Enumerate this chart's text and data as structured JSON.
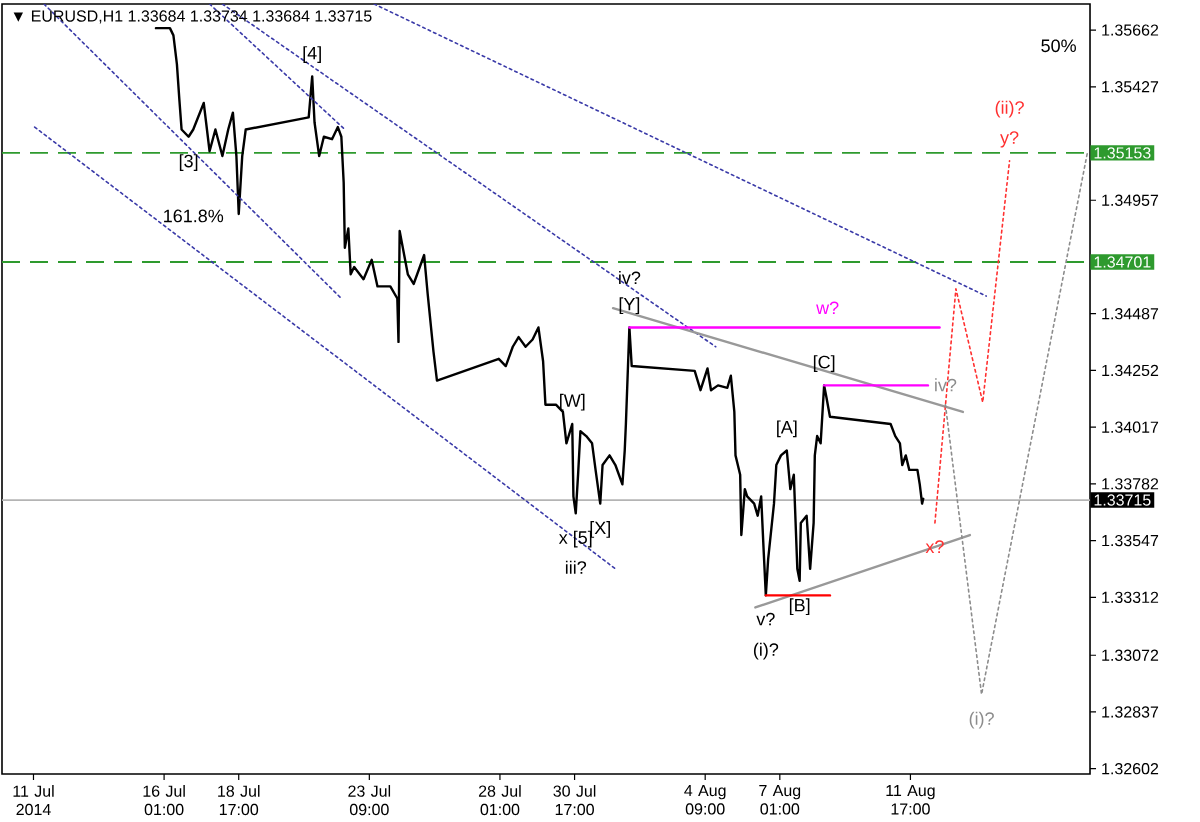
{
  "chart_data": {
    "type": "line",
    "title": "▼ EURUSD,H1 1.33684 1.33734 1.33684 1.33715",
    "xlim": [
      "2014-07-10T06:00",
      "2014-08-18T03:00"
    ],
    "ylim": [
      1.3258,
      1.3577
    ],
    "xticks": [
      {
        "value": "2014-07-11T09:00",
        "label": "11 Jul 2014"
      },
      {
        "value": "2014-07-16T01:00",
        "label": "16 Jul 01:00"
      },
      {
        "value": "2014-07-18T17:00",
        "label": "18 Jul 17:00"
      },
      {
        "value": "2014-07-23T09:00",
        "label": "23 Jul 09:00"
      },
      {
        "value": "2014-07-28T01:00",
        "label": "28 Jul 01:00"
      },
      {
        "value": "2014-07-30T17:00",
        "label": "30 Jul 17:00"
      },
      {
        "value": "2014-08-04T09:00",
        "label": "4 Aug 09:00"
      },
      {
        "value": "2014-08-07T01:00",
        "label": "7 Aug 01:00"
      },
      {
        "value": "2014-08-11T17:00",
        "label": "11 Aug 17:00"
      }
    ],
    "yticks": [
      1.35662,
      1.35427,
      1.34957,
      1.34487,
      1.34252,
      1.34017,
      1.33782,
      1.33547,
      1.33312,
      1.33072,
      1.32837,
      1.32602
    ],
    "series": [
      {
        "color": "#000000",
        "line_style": "solid",
        "x": [
          "2014-07-15T18:00",
          "2014-07-16T06:00",
          "2014-07-16T09:00",
          "2014-07-16T12:00",
          "2014-07-16T14:00",
          "2014-07-16T16:00",
          "2014-07-16T22:00",
          "2014-07-17T02:00",
          "2014-07-17T11:00",
          "2014-07-17T13:00",
          "2014-07-17T16:00",
          "2014-07-17T21:00",
          "2014-07-18T03:00",
          "2014-07-18T08:00",
          "2014-07-18T12:00",
          "2014-07-18T15:00",
          "2014-07-18T17:00",
          "2014-07-18T20:00",
          "2014-07-18T23:00",
          "2014-07-21T05:00",
          "2014-07-21T08:00",
          "2014-07-21T10:00",
          "2014-07-21T14:00",
          "2014-07-21T18:00",
          "2014-07-22T01:00",
          "2014-07-22T06:00",
          "2014-07-22T09:00",
          "2014-07-22T11:00",
          "2014-07-22T12:00",
          "2014-07-22T15:00",
          "2014-07-22T17:00",
          "2014-07-22T20:00",
          "2014-07-23T04:00",
          "2014-07-23T11:00",
          "2014-07-23T16:00",
          "2014-07-24T03:00",
          "2014-07-24T09:00",
          "2014-07-24T10:00",
          "2014-07-24T11:00",
          "2014-07-24T18:00",
          "2014-07-24T23:00",
          "2014-07-25T08:00",
          "2014-07-25T11:00",
          "2014-07-25T16:00",
          "2014-07-25T19:00",
          "2014-07-28T00:00",
          "2014-07-28T06:00",
          "2014-07-28T12:00",
          "2014-07-28T17:00",
          "2014-07-28T23:00",
          "2014-07-29T05:00",
          "2014-07-29T10:00",
          "2014-07-29T14:00",
          "2014-07-29T16:00",
          "2014-07-30T01:00",
          "2014-07-30T07:00",
          "2014-07-30T10:00",
          "2014-07-30T15:00",
          "2014-07-30T16:00",
          "2014-07-30T18:00",
          "2014-07-30T20:00",
          "2014-07-30T22:00",
          "2014-07-31T03:00",
          "2014-07-31T08:00",
          "2014-07-31T11:00",
          "2014-07-31T15:00",
          "2014-07-31T17:00",
          "2014-07-31T23:00",
          "2014-08-01T04:00",
          "2014-08-01T10:00",
          "2014-08-01T12:00",
          "2014-08-01T13:00",
          "2014-08-01T16:00",
          "2014-08-01T18:00",
          "2014-08-04T00:00",
          "2014-08-04T05:00",
          "2014-08-04T11:00",
          "2014-08-04T14:00",
          "2014-08-04T20:00",
          "2014-08-05T04:00",
          "2014-08-05T07:00",
          "2014-08-05T10:00",
          "2014-08-05T11:00",
          "2014-08-05T15:00",
          "2014-08-05T16:00",
          "2014-08-05T19:00",
          "2014-08-05T21:00",
          "2014-08-06T03:00",
          "2014-08-06T06:00",
          "2014-08-06T09:00",
          "2014-08-06T11:00",
          "2014-08-06T13:00",
          "2014-08-06T15:00",
          "2014-08-06T20:00",
          "2014-08-06T22:00",
          "2014-08-07T02:00",
          "2014-08-07T07:00",
          "2014-08-07T10:00",
          "2014-08-07T13:00",
          "2014-08-07T16:00",
          "2014-08-07T18:00",
          "2014-08-07T19:00",
          "2014-08-08T00:00",
          "2014-08-08T03:00",
          "2014-08-08T06:00",
          "2014-08-08T07:00",
          "2014-08-08T09:00",
          "2014-08-08T12:00",
          "2014-08-08T15:00",
          "2014-08-08T17:00",
          "2014-08-08T20:00",
          "2014-08-11T00:00",
          "2014-08-11T04:00",
          "2014-08-11T08:00",
          "2014-08-11T10:00",
          "2014-08-11T13:00",
          "2014-08-11T16:00",
          "2014-08-11T23:00",
          "2014-08-12T01:00",
          "2014-08-12T03:00",
          "2014-08-12T04:00"
        ],
        "values": [
          1.3567,
          1.3567,
          1.3564,
          1.3552,
          1.3538,
          1.3525,
          1.3522,
          1.3525,
          1.3536,
          1.3528,
          1.3516,
          1.3525,
          1.3514,
          1.3525,
          1.3532,
          1.3514,
          1.349,
          1.3514,
          1.3525,
          1.353,
          1.3547,
          1.3528,
          1.3514,
          1.3522,
          1.3521,
          1.3526,
          1.3522,
          1.3503,
          1.3476,
          1.3484,
          1.3465,
          1.3468,
          1.3463,
          1.3471,
          1.346,
          1.346,
          1.3455,
          1.3437,
          1.3483,
          1.3465,
          1.3461,
          1.3473,
          1.3457,
          1.3433,
          1.3421,
          1.343,
          1.3427,
          1.3435,
          1.3439,
          1.3435,
          1.3438,
          1.3443,
          1.3429,
          1.3411,
          1.3411,
          1.3408,
          1.3395,
          1.3403,
          1.3373,
          1.3366,
          1.3382,
          1.34,
          1.3398,
          1.3395,
          1.3384,
          1.337,
          1.3386,
          1.339,
          1.3386,
          1.3378,
          1.3392,
          1.3403,
          1.3443,
          1.3427,
          1.3425,
          1.3417,
          1.3426,
          1.3417,
          1.3419,
          1.3418,
          1.3423,
          1.3408,
          1.339,
          1.3382,
          1.3357,
          1.3376,
          1.3373,
          1.337,
          1.3365,
          1.3373,
          1.3352,
          1.3332,
          1.3347,
          1.337,
          1.3386,
          1.339,
          1.3392,
          1.3376,
          1.3382,
          1.3343,
          1.3338,
          1.3362,
          1.3365,
          1.3343,
          1.3362,
          1.339,
          1.3398,
          1.3395,
          1.3419,
          1.3414,
          1.3406,
          1.3403,
          1.3398,
          1.3395,
          1.3386,
          1.339,
          1.3384,
          1.3384,
          1.3378,
          1.337,
          1.3372
        ]
      },
      {
        "color": "#3a3aa8",
        "line_style": "dotted",
        "x": [
          "2014-07-11T10:00",
          "2014-08-01T04:00"
        ],
        "values": [
          1.3526,
          1.3343
        ]
      },
      {
        "color": "#3a3aa8",
        "line_style": "dotted",
        "x": [
          "2014-07-11T18:00",
          "2014-07-22T09:00"
        ],
        "values": [
          1.3577,
          1.3455
        ]
      },
      {
        "color": "#3a3aa8",
        "line_style": "dotted",
        "x": [
          "2014-07-17T16:00",
          "2014-07-22T12:00"
        ],
        "values": [
          1.3577,
          1.3525
        ]
      },
      {
        "color": "#3a3aa8",
        "line_style": "dotted",
        "x": [
          "2014-07-18T03:00",
          "2014-08-04T18:00"
        ],
        "values": [
          1.3577,
          1.3435
        ]
      },
      {
        "color": "#3a3aa8",
        "line_style": "dotted",
        "x": [
          "2014-07-23T13:00",
          "2014-08-14T10:00"
        ],
        "values": [
          1.3577,
          1.3456
        ]
      },
      {
        "color": "#999999",
        "line_style": "solid",
        "x": [
          "2014-08-01T02:00",
          "2014-08-13T14:00"
        ],
        "values": [
          1.3451,
          1.3408
        ]
      },
      {
        "color": "#999999",
        "line_style": "solid",
        "x": [
          "2014-08-06T04:00",
          "2014-08-13T20:00"
        ],
        "values": [
          1.3327,
          1.3357
        ]
      },
      {
        "color": "#ff00ff",
        "line_style": "solid",
        "x": [
          "2014-08-01T16:00",
          "2014-08-12T18:00"
        ],
        "values": [
          1.3443,
          1.3443
        ]
      },
      {
        "color": "#ff00ff",
        "line_style": "solid",
        "x": [
          "2014-08-08T15:00",
          "2014-08-12T08:00"
        ],
        "values": [
          1.3419,
          1.3419
        ]
      },
      {
        "color": "#ff0000",
        "line_style": "solid",
        "x": [
          "2014-08-06T13:00",
          "2014-08-08T20:00"
        ],
        "values": [
          1.3332,
          1.3332
        ]
      },
      {
        "color": "#ff3030",
        "line_style": "dotted",
        "x": [
          "2014-08-12T14:00",
          "2014-08-13T08:00",
          "2014-08-14T07:00",
          "2014-08-15T06:00"
        ],
        "values": [
          1.3362,
          1.3459,
          1.3412,
          1.3512
        ]
      },
      {
        "color": "#8c8c8c",
        "line_style": "dotted",
        "x": [
          "2014-08-12T23:00",
          "2014-08-14T06:00",
          "2014-08-18T01:00"
        ],
        "values": [
          1.3411,
          1.3291,
          1.3516
        ]
      }
    ],
    "ref_lines": [
      {
        "axis": "y",
        "value": 1.35153,
        "label": "1.35153",
        "color": "#2e9a2e",
        "line_style": "dashed"
      },
      {
        "axis": "y",
        "value": 1.34701,
        "label": "1.34701",
        "color": "#2e9a2e",
        "line_style": "dashed"
      },
      {
        "axis": "y",
        "value": 1.33715,
        "label": "1.33715",
        "color": "#b4b4b4",
        "line_style": "solid"
      }
    ],
    "annotations": [
      {
        "text": "[3]",
        "x": "2014-07-16T22:00",
        "y": 1.3522
      },
      {
        "text": "[4]",
        "x": "2014-07-21T08:00",
        "y": 1.3547
      },
      {
        "text": "161.8%",
        "x": "2014-07-17T02:00",
        "y": 1.3481
      },
      {
        "text": "[Y]",
        "x": "2014-08-01T16:00",
        "y": 1.3443
      },
      {
        "text": "iv?",
        "x": "2014-08-01T16:00",
        "y": 1.3443
      },
      {
        "text": "[W]",
        "x": "2014-07-30T15:00",
        "y": 1.3403
      },
      {
        "text": "x [5]",
        "x": "2014-07-30T18:00",
        "y": 1.3366
      },
      {
        "text": "iii?",
        "x": "2014-07-30T18:00",
        "y": 1.3366
      },
      {
        "text": "[X]",
        "x": "2014-07-31T15:00",
        "y": 1.337
      },
      {
        "text": "w?",
        "x": "2014-08-08T18:00",
        "y": 1.3443
      },
      {
        "text": "[C]",
        "x": "2014-08-08T15:00",
        "y": 1.3419
      },
      {
        "text": "[A]",
        "x": "2014-08-07T07:00",
        "y": 1.3392
      },
      {
        "text": "[B]",
        "x": "2014-08-07T18:00",
        "y": 1.3338
      },
      {
        "text": "v?",
        "x": "2014-08-06T13:00",
        "y": 1.3332
      },
      {
        "text": "(i)?",
        "x": "2014-08-06T13:00",
        "y": 1.3332
      },
      {
        "text": "x?",
        "x": "2014-08-12T14:00",
        "y": 1.3362
      },
      {
        "text": "iv?",
        "x": "2014-08-12T23:00",
        "y": 1.3411
      },
      {
        "text": "(i)?",
        "x": "2014-08-14T06:00",
        "y": 1.3291
      },
      {
        "text": "y?",
        "x": "2014-08-15T06:00",
        "y": 1.3512
      },
      {
        "text": "(ii)?",
        "x": "2014-08-15T06:00",
        "y": 1.3512
      },
      "50%"
    ]
  }
}
